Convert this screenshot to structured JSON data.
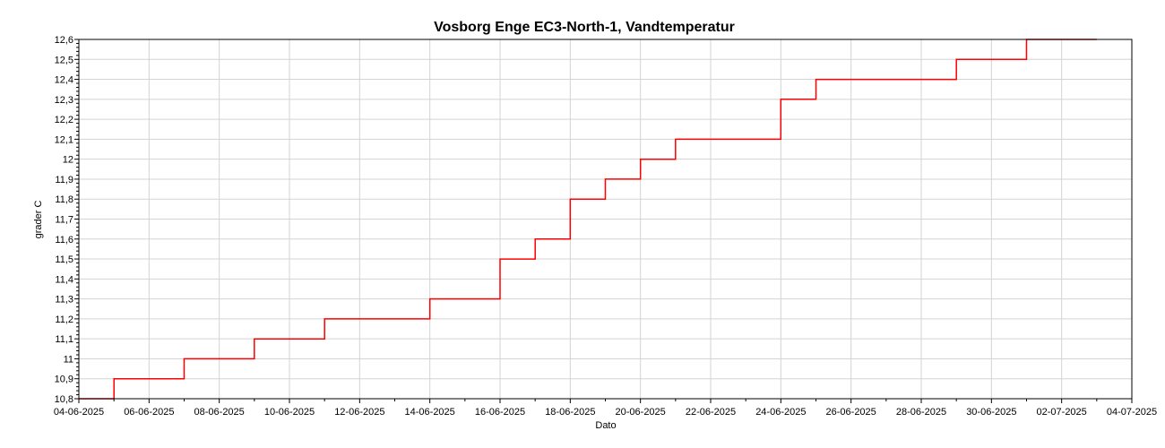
{
  "chart_data": {
    "type": "line",
    "title": "Vosborg Enge EC3-North-1, Vandtemperatur",
    "xlabel": "Dato",
    "ylabel": "grader C",
    "ylim": [
      10.8,
      12.6
    ],
    "xlim": [
      "2025-06-04",
      "2025-07-04"
    ],
    "grid": true,
    "yticks": [
      "10,8",
      "10,9",
      "11",
      "11,1",
      "11,2",
      "11,3",
      "11,4",
      "11,5",
      "11,6",
      "11,7",
      "11,8",
      "11,9",
      "12",
      "12,1",
      "12,2",
      "12,3",
      "12,4",
      "12,5",
      "12,6"
    ],
    "xticks": [
      "04-06-2025",
      "06-06-2025",
      "08-06-2025",
      "10-06-2025",
      "12-06-2025",
      "14-06-2025",
      "16-06-2025",
      "18-06-2025",
      "20-06-2025",
      "22-06-2025",
      "24-06-2025",
      "26-06-2025",
      "28-06-2025",
      "30-06-2025",
      "02-07-2025",
      "04-07-2025"
    ],
    "colors": {
      "series": "#ff0000",
      "grid": "#d3d3d3",
      "axis": "#000000"
    },
    "series": [
      {
        "x": [
          "2025-06-04 00:00",
          "2025-06-05 00:00",
          "2025-06-06 06:00",
          "2025-06-07 00:00",
          "2025-06-08 00:00",
          "2025-06-09 00:00",
          "2025-06-10 00:00",
          "2025-06-11 00:00",
          "2025-06-12 00:00",
          "2025-06-13 00:00",
          "2025-06-14 00:00",
          "2025-06-15 00:00",
          "2025-06-16 00:00",
          "2025-06-17 00:00",
          "2025-06-18 00:00",
          "2025-06-19 00:00",
          "2025-06-20 00:00",
          "2025-06-21 00:00",
          "2025-06-22 00:00",
          "2025-06-23 00:00",
          "2025-06-24 00:00",
          "2025-06-25 00:00",
          "2025-06-26 00:00",
          "2025-06-27 00:00",
          "2025-06-28 00:00",
          "2025-06-29 00:00",
          "2025-06-30 00:00",
          "2025-07-01 00:00",
          "2025-07-02 00:00",
          "2025-07-03 00:00"
        ],
        "values": [
          10.8,
          10.9,
          10.9,
          11.0,
          11.0,
          11.1,
          11.1,
          11.2,
          11.2,
          11.2,
          11.3,
          11.3,
          11.5,
          11.6,
          11.8,
          11.9,
          12.0,
          12.1,
          12.1,
          12.1,
          12.3,
          12.4,
          12.4,
          12.4,
          12.4,
          12.5,
          12.5,
          12.6,
          12.6,
          12.6
        ]
      }
    ]
  }
}
